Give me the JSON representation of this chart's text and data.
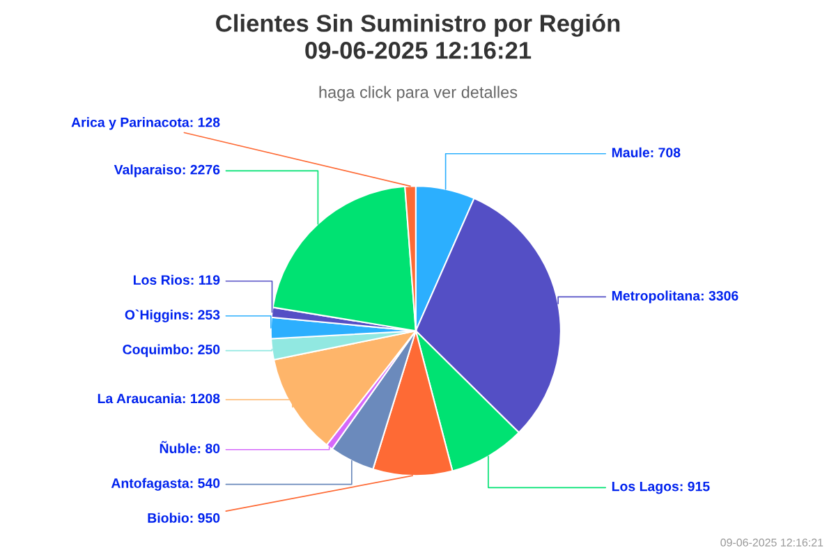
{
  "chart_data": {
    "type": "pie",
    "title": "Clientes Sin Suministro por Región\n09-06-2025 12:16:21",
    "subtitle": "haga click para ver detalles",
    "categories": [
      "Maule: 708",
      "Metropolitana: 3306",
      "Los Lagos: 915",
      "Biobio: 950",
      "Antofagasta: 540",
      "Ñuble: 80",
      "La Araucania: 1208",
      "Coquimbo: 250",
      "O`Higgins: 253",
      "Los Rios: 119",
      "Valparaiso: 2276",
      "Arica y Parinacota: 128"
    ],
    "values": [
      708,
      3306,
      915,
      950,
      540,
      80,
      1208,
      250,
      253,
      119,
      2276,
      128
    ],
    "colors": [
      "#2caffe",
      "#544fc5",
      "#00e272",
      "#fe6a35",
      "#6b8abc",
      "#d568fb",
      "#feb56a",
      "#91e8e1",
      "#2caffe",
      "#544fc5",
      "#00e272",
      "#fe6a35"
    ],
    "legend": false,
    "annotations": [
      "09-06-2025 12:16:21"
    ]
  }
}
